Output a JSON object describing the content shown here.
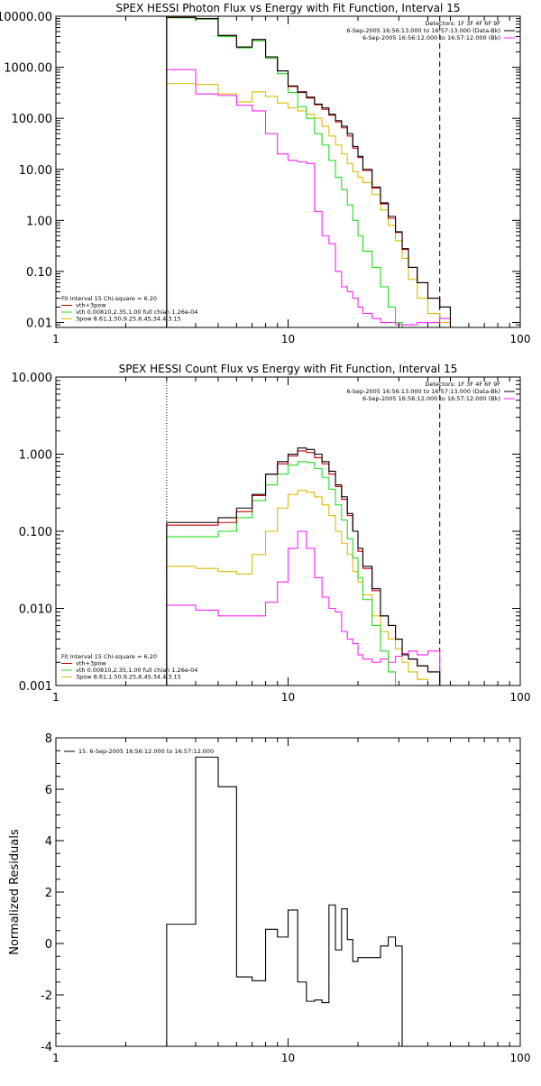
{
  "colors": {
    "background": "#ffffff",
    "axes": "#000000",
    "data": "#000000",
    "total": "#cc0000",
    "thermal": "#22dd22",
    "background_model": "#ff22ff",
    "power_law": "#ddbb00"
  },
  "chart_data": [
    {
      "type": "line",
      "title": "SPEX HESSI Photon Flux vs Energy with Fit Function, Interval 15",
      "xlabel": "",
      "ylabel": "",
      "xscale": "log",
      "yscale": "log",
      "xlim": [
        1,
        100
      ],
      "ylim": [
        0.008,
        10000
      ],
      "xticks": [
        1,
        10,
        100
      ],
      "xtick_labels": [
        "1",
        "10",
        "100"
      ],
      "yticks": [
        0.01,
        0.1,
        1,
        10,
        100,
        1000,
        10000
      ],
      "ytick_labels": [
        "0.01",
        "0.10",
        "1.00",
        "10.00",
        "100.00",
        "1000.00",
        "10000.00"
      ],
      "vlines": [
        {
          "x": 3.0,
          "style": "dotted"
        },
        {
          "x": 45,
          "style": "dashed"
        }
      ],
      "legend_topright": [
        "Detectors: 1F 3F 4F 6F 9F",
        "6-Sep-2005 16:56:13.000 to 16:57:13.000 (Data-Bk)",
        "6-Sep-2005 16:56:12.000 to 16:57:12.000 (Bk)"
      ],
      "legend_bottomleft": [
        "Fit Interval 15    Chi-square = 6.20",
        "vth+3pow",
        "vth 0.00810,2.35,1.00  full chian 1.26e-04",
        "3pow 8.61,1.50,9.25,6.45,34.4,3.15"
      ],
      "edges": [
        3,
        4,
        5,
        6,
        7,
        8,
        9,
        10,
        11,
        12,
        13,
        14,
        15,
        16,
        17,
        18,
        19,
        20,
        21,
        23,
        25,
        27,
        29,
        31,
        33,
        36,
        40,
        45,
        50
      ],
      "series": [
        {
          "role": "data",
          "values": [
            9500,
            9000,
            4200,
            2500,
            3500,
            1600,
            850,
            430,
            330,
            260,
            190,
            160,
            120,
            90,
            70,
            50,
            28,
            18,
            10,
            4.5,
            2.2,
            1.2,
            0.6,
            0.28,
            0.12,
            0.06,
            0.03,
            0.02
          ]
        },
        {
          "role": "total",
          "values": [
            9500,
            9000,
            4200,
            2500,
            3500,
            1600,
            850,
            420,
            320,
            250,
            185,
            150,
            115,
            85,
            65,
            45,
            26,
            17,
            9.5,
            4.3,
            2.1,
            1.1,
            0.58,
            0.27,
            0.12,
            0.06,
            0.03,
            0.02
          ]
        },
        {
          "role": "thermal",
          "values": [
            9300,
            8800,
            4000,
            2400,
            3300,
            1500,
            750,
            320,
            170,
            100,
            50,
            30,
            15,
            7,
            4,
            2,
            1,
            0.5,
            0.25,
            0.12,
            0.05,
            0.02,
            0.01,
            0.008,
            0.008,
            0.008,
            0.008,
            0.008
          ]
        },
        {
          "role": "background_model",
          "values": [
            900,
            300,
            280,
            180,
            140,
            50,
            20,
            15,
            14,
            13,
            1.5,
            0.5,
            0.35,
            0.1,
            0.05,
            0.04,
            0.03,
            0.02,
            0.015,
            0.012,
            0.01,
            0.01,
            0.009,
            0.009,
            0.009,
            0.01,
            0.01,
            0.012
          ]
        },
        {
          "role": "power_law",
          "values": [
            480,
            460,
            300,
            210,
            330,
            270,
            200,
            160,
            140,
            120,
            100,
            70,
            45,
            30,
            20,
            13,
            9,
            7,
            5.5,
            3.2,
            1.6,
            0.8,
            0.4,
            0.18,
            0.07,
            0.03,
            0.015,
            0.01
          ]
        }
      ]
    },
    {
      "type": "line",
      "title": "SPEX HESSI Count Flux vs Energy with Fit Function, Interval 15",
      "xlabel": "",
      "ylabel": "",
      "xscale": "log",
      "yscale": "log",
      "xlim": [
        1,
        100
      ],
      "ylim": [
        0.001,
        10
      ],
      "xticks": [
        1,
        10,
        100
      ],
      "xtick_labels": [
        "1",
        "10",
        "100"
      ],
      "yticks": [
        0.001,
        0.01,
        0.1,
        1,
        10
      ],
      "ytick_labels": [
        "0.001",
        "0.010",
        "0.100",
        "1.000",
        "10.000"
      ],
      "vlines": [
        {
          "x": 3.0,
          "style": "dotted"
        },
        {
          "x": 45,
          "style": "dashed"
        }
      ],
      "legend_topright": [
        "Detectors: 1F 3F 4F 6F 9F",
        "6-Sep-2005 16:56:13.000 to 16:57:13.000 (Data-Bk)",
        "6-Sep-2005 16:56:12.000 to 16:57:12.000 (Bk)"
      ],
      "legend_bottomleft": [
        "Fit Interval 15    Chi-square = 6.20",
        "vth+3pow",
        "vth 0.00810,2.35,1.00  full chian 1.26e-04",
        "3pow 8.61,1.50,9.25,6.45,34.4,3.15"
      ],
      "edges": [
        3,
        4,
        5,
        6,
        7,
        8,
        9,
        10,
        11,
        12,
        13,
        14,
        15,
        16,
        17,
        18,
        19,
        20,
        21,
        23,
        25,
        27,
        29,
        31,
        33,
        36,
        40,
        45,
        50
      ],
      "series": [
        {
          "role": "data",
          "values": [
            0.13,
            0.13,
            0.15,
            0.2,
            0.3,
            0.55,
            0.8,
            1.0,
            1.2,
            1.15,
            1.0,
            0.8,
            0.6,
            0.4,
            0.28,
            0.17,
            0.1,
            0.06,
            0.035,
            0.018,
            0.008,
            0.006,
            0.004,
            0.0025,
            0.0022,
            0.0018,
            0.0015,
            0.001
          ]
        },
        {
          "role": "total",
          "values": [
            0.12,
            0.12,
            0.13,
            0.18,
            0.29,
            0.55,
            0.75,
            0.95,
            1.1,
            1.05,
            0.9,
            0.75,
            0.55,
            0.38,
            0.26,
            0.16,
            0.1,
            0.055,
            0.033,
            0.017,
            0.008,
            0.006,
            0.004,
            0.0025,
            0.0022,
            0.0018,
            0.0015,
            0.001
          ]
        },
        {
          "role": "thermal",
          "values": [
            0.085,
            0.085,
            0.1,
            0.15,
            0.25,
            0.4,
            0.55,
            0.72,
            0.8,
            0.78,
            0.65,
            0.5,
            0.35,
            0.22,
            0.14,
            0.08,
            0.045,
            0.025,
            0.013,
            0.006,
            0.0028,
            0.0015,
            0.001,
            0.001,
            0.001,
            0.001,
            0.001,
            0.001
          ]
        },
        {
          "role": "background_model",
          "values": [
            0.011,
            0.0095,
            0.008,
            0.008,
            0.008,
            0.012,
            0.022,
            0.06,
            0.1,
            0.06,
            0.025,
            0.014,
            0.01,
            0.009,
            0.005,
            0.004,
            0.0035,
            0.0025,
            0.0022,
            0.002,
            0.0022,
            0.002,
            0.0024,
            0.0026,
            0.0028,
            0.0025,
            0.0028,
            0.001
          ]
        },
        {
          "role": "power_law",
          "values": [
            0.035,
            0.033,
            0.03,
            0.028,
            0.05,
            0.1,
            0.2,
            0.3,
            0.34,
            0.32,
            0.28,
            0.22,
            0.16,
            0.1,
            0.07,
            0.05,
            0.03,
            0.022,
            0.015,
            0.008,
            0.005,
            0.004,
            0.003,
            0.002,
            0.0015,
            0.0012,
            0.001,
            0.001
          ]
        }
      ]
    },
    {
      "type": "line",
      "title": "",
      "xlabel": "",
      "ylabel": "Normalized Residuals",
      "xscale": "log",
      "yscale": "linear",
      "xlim": [
        1,
        100
      ],
      "ylim": [
        -4,
        8
      ],
      "xticks": [
        1,
        10,
        100
      ],
      "xtick_labels": [
        "1",
        "10",
        "100"
      ],
      "yticks": [
        -4,
        -2,
        0,
        2,
        4,
        6,
        8
      ],
      "ytick_labels": [
        "-4",
        "-2",
        "0",
        "2",
        "4",
        "6",
        "8"
      ],
      "legend_topleft": [
        "15.  6-Sep-2005 16:56:12.000 to 16:57:12.000"
      ],
      "edges": [
        3,
        4,
        5,
        6,
        7,
        8,
        9,
        10,
        11,
        12,
        13,
        14,
        15,
        16,
        17,
        18,
        19,
        20,
        21,
        23,
        25,
        27,
        29,
        31,
        33,
        36,
        40,
        45
      ],
      "series": [
        {
          "role": "data",
          "values": [
            0.75,
            7.25,
            6.1,
            -1.3,
            -1.45,
            0.55,
            0.25,
            1.3,
            -1.5,
            -2.25,
            -2.2,
            -2.3,
            1.5,
            -0.25,
            1.35,
            0.15,
            -0.7,
            -0.55,
            -0.55,
            -0.55,
            -0.1,
            0.25,
            -0.1
          ]
        }
      ]
    }
  ]
}
